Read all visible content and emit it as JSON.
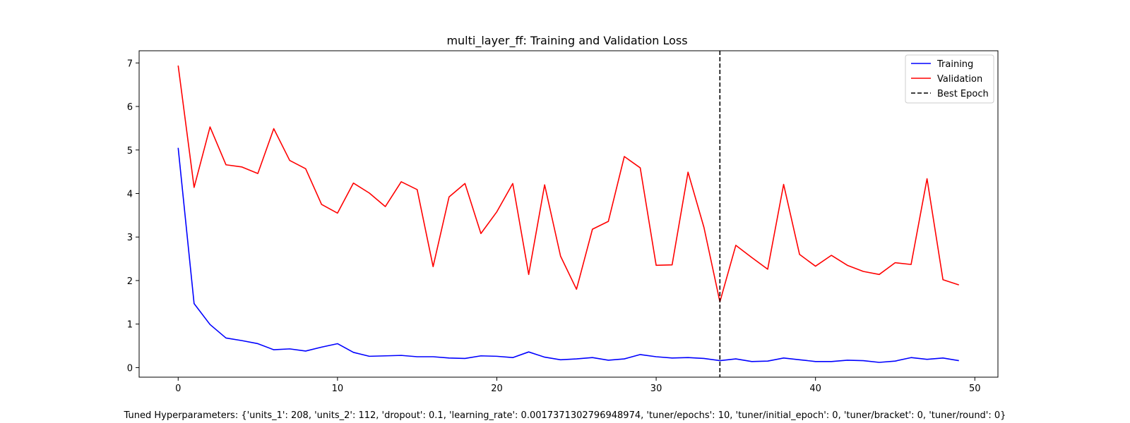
{
  "chart_data": {
    "type": "line",
    "title": "multi_layer_ff: Training and Validation Loss",
    "xlabel": "",
    "ylabel": "",
    "xlim": [
      -2.45,
      51.45
    ],
    "ylim": [
      -0.22,
      7.28
    ],
    "x_ticks": [
      0,
      10,
      20,
      30,
      40,
      50
    ],
    "y_ticks": [
      0,
      1,
      2,
      3,
      4,
      5,
      6,
      7
    ],
    "grid": false,
    "legend_position": "top-right",
    "x": [
      0,
      1,
      2,
      3,
      4,
      5,
      6,
      7,
      8,
      9,
      10,
      11,
      12,
      13,
      14,
      15,
      16,
      17,
      18,
      19,
      20,
      21,
      22,
      23,
      24,
      25,
      26,
      27,
      28,
      29,
      30,
      31,
      32,
      33,
      34,
      35,
      36,
      37,
      38,
      39,
      40,
      41,
      42,
      43,
      44,
      45,
      46,
      47,
      48,
      49
    ],
    "series": [
      {
        "name": "Training",
        "color": "#0000ff",
        "style": "solid",
        "values": [
          5.05,
          1.47,
          0.99,
          0.68,
          0.62,
          0.55,
          0.41,
          0.43,
          0.38,
          0.47,
          0.55,
          0.35,
          0.26,
          0.27,
          0.28,
          0.25,
          0.25,
          0.22,
          0.21,
          0.27,
          0.26,
          0.23,
          0.36,
          0.24,
          0.18,
          0.2,
          0.23,
          0.17,
          0.2,
          0.3,
          0.25,
          0.22,
          0.23,
          0.21,
          0.16,
          0.2,
          0.14,
          0.15,
          0.22,
          0.18,
          0.14,
          0.14,
          0.17,
          0.16,
          0.12,
          0.15,
          0.23,
          0.19,
          0.22,
          0.16
        ]
      },
      {
        "name": "Validation",
        "color": "#ff0000",
        "style": "solid",
        "values": [
          6.94,
          4.14,
          5.53,
          4.66,
          4.61,
          4.46,
          5.49,
          4.76,
          4.57,
          3.75,
          3.55,
          4.24,
          4.01,
          3.7,
          4.27,
          4.09,
          2.32,
          3.92,
          4.23,
          3.08,
          3.58,
          4.23,
          2.14,
          4.2,
          2.56,
          1.8,
          3.18,
          3.36,
          4.85,
          4.59,
          2.35,
          2.36,
          4.49,
          3.22,
          1.51,
          2.81,
          2.53,
          2.26,
          4.21,
          2.6,
          2.33,
          2.58,
          2.35,
          2.21,
          2.14,
          2.41,
          2.37,
          4.34,
          2.02,
          1.9
        ]
      }
    ],
    "vertical_line": {
      "name": "Best Epoch",
      "x": 34,
      "color": "#000000",
      "style": "dashed"
    }
  },
  "caption": "Tuned Hyperparameters: {'units_1': 208, 'units_2': 112, 'dropout': 0.1, 'learning_rate': 0.0017371302796948974, 'tuner/epochs': 10, 'tuner/initial_epoch': 0, 'tuner/bracket': 0, 'tuner/round': 0}"
}
